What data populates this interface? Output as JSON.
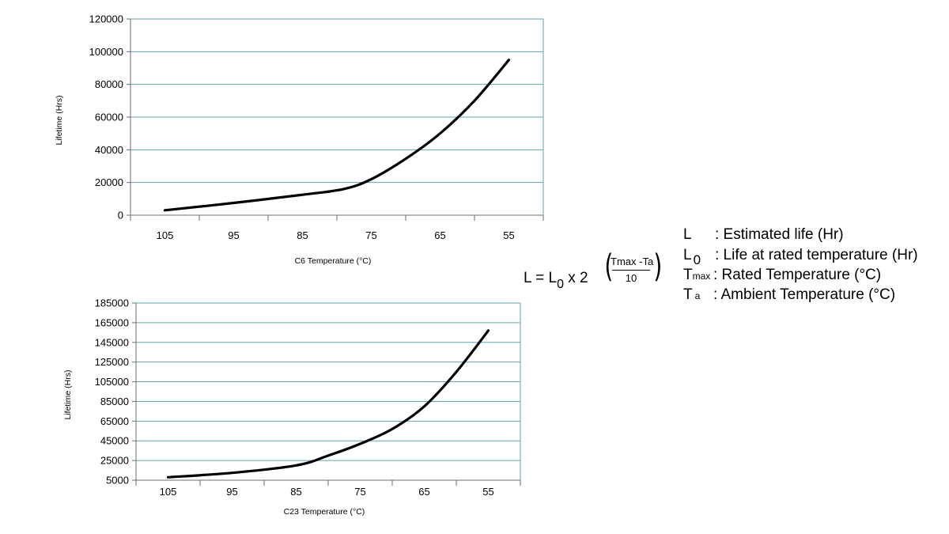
{
  "chart_data": [
    {
      "type": "line",
      "xlabel": "C6 Temperature (°C)",
      "ylabel": "Lifetime (Hrs)",
      "categories": [
        "105",
        "95",
        "85",
        "75",
        "65",
        "55"
      ],
      "y_ticks": [
        "0",
        "20000",
        "40000",
        "60000",
        "80000",
        "100000",
        "120000"
      ],
      "ylim": [
        0,
        120000
      ],
      "series": [
        {
          "x": [
            105,
            95,
            85,
            79,
            75,
            70,
            65,
            60,
            55
          ],
          "values": [
            3000,
            7500,
            12500,
            16000,
            22000,
            34500,
            50000,
            70000,
            95000
          ]
        }
      ],
      "grid": true
    },
    {
      "type": "line",
      "xlabel": "C23 Temperature (°C)",
      "ylabel": "Lifetime (Hrs)",
      "categories": [
        "105",
        "95",
        "85",
        "75",
        "65",
        "55"
      ],
      "y_ticks": [
        "5000",
        "25000",
        "45000",
        "65000",
        "85000",
        "105000",
        "125000",
        "145000",
        "165000",
        "185000"
      ],
      "ylim": [
        5000,
        185000
      ],
      "series": [
        {
          "x": [
            105,
            95,
            85,
            80,
            75,
            70,
            65,
            60,
            55
          ],
          "values": [
            8000,
            12500,
            20000,
            30000,
            42000,
            57000,
            80000,
            115000,
            157000
          ]
        }
      ],
      "grid": true
    }
  ],
  "formula": {
    "lhs": "L = L",
    "lhs_sub": "0",
    "times": "x 2",
    "paren_open": "(",
    "paren_close": ")",
    "exp_numerator": "Tmax -Ta",
    "exp_denominator": "10"
  },
  "legend": [
    {
      "symbol": "L",
      "sub": "",
      "description": ": Estimated life (Hr)"
    },
    {
      "symbol": "L",
      "sub": "0",
      "description": ": Life at rated temperature (Hr)"
    },
    {
      "symbol": "T",
      "sub": "max",
      "description": ": Rated Temperature (°C)"
    },
    {
      "symbol": "T",
      "sub": "a",
      "description": ": Ambient Temperature (°C)"
    }
  ]
}
